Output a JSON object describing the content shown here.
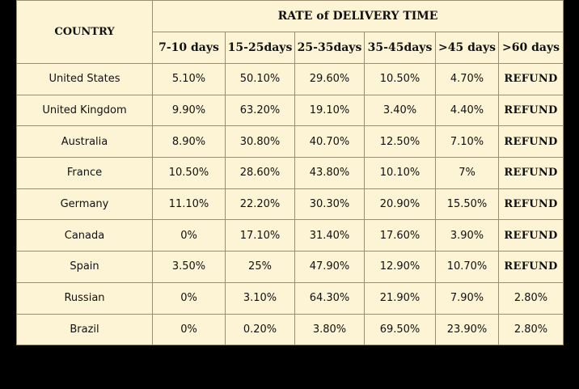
{
  "table": {
    "country_header": "COUNTRY",
    "group_header": "RATE of DELIVERY TIME",
    "columns": [
      "7-10 days",
      "15-25days",
      "25-35days",
      "35-45days",
      ">45 days",
      ">60 days"
    ],
    "rows": [
      {
        "country": "United States",
        "values": [
          "5.10%",
          "50.10%",
          "29.60%",
          "10.50%",
          "4.70%",
          "REFUND"
        ]
      },
      {
        "country": "United Kingdom",
        "values": [
          "9.90%",
          "63.20%",
          "19.10%",
          "3.40%",
          "4.40%",
          "REFUND"
        ]
      },
      {
        "country": "Australia",
        "values": [
          "8.90%",
          "30.80%",
          "40.70%",
          "12.50%",
          "7.10%",
          "REFUND"
        ]
      },
      {
        "country": "France",
        "values": [
          "10.50%",
          "28.60%",
          "43.80%",
          "10.10%",
          "7%",
          "REFUND"
        ]
      },
      {
        "country": "Germany",
        "values": [
          "11.10%",
          "22.20%",
          "30.30%",
          "20.90%",
          "15.50%",
          "REFUND"
        ]
      },
      {
        "country": "Canada",
        "values": [
          "0%",
          "17.10%",
          "31.40%",
          "17.60%",
          "3.90%",
          "REFUND"
        ]
      },
      {
        "country": "Spain",
        "values": [
          "3.50%",
          "25%",
          "47.90%",
          "12.90%",
          "10.70%",
          "REFUND"
        ]
      },
      {
        "country": "Russian",
        "values": [
          "0%",
          "3.10%",
          "64.30%",
          "21.90%",
          "7.90%",
          "2.80%"
        ]
      },
      {
        "country": "Brazil",
        "values": [
          "0%",
          "0.20%",
          "3.80%",
          "69.50%",
          "23.90%",
          "2.80%"
        ]
      }
    ]
  },
  "colors": {
    "background": "#000000",
    "cell_background": "#fcf4d4",
    "border": "#9a8f6e",
    "text": "#111111"
  }
}
